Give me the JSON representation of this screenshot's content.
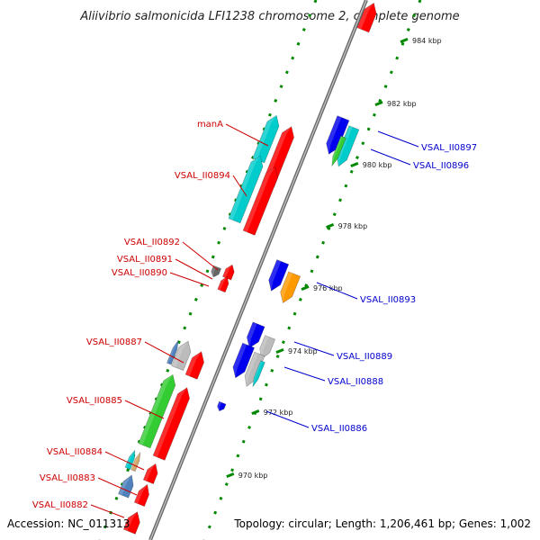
{
  "title": "Aliivibrio salmonicida LFI1238 chromosome 2, complete genome",
  "footer": {
    "accession": "Accession: NC_011313",
    "summary": "Topology: circular; Length: 1,206,461 bp; Genes: 1,002"
  },
  "colors": {
    "forward_label": "#cc0000",
    "reverse_label": "#0000cc",
    "tick": "#008800",
    "backbone": "#888888",
    "red": "#ff0000",
    "blue": "#0000ee",
    "cyan": "#00cccc",
    "green": "#33cc33",
    "orange": "#ff9900",
    "gray": "#bbbbbb",
    "steel": "#4f81bd",
    "tan": "#d2a96b",
    "dark": "#666666"
  },
  "ticks": [
    {
      "label": "984 kbp"
    },
    {
      "label": "982 kbp"
    },
    {
      "label": "980 kbp"
    },
    {
      "label": "978 kbp"
    },
    {
      "label": "976 kbp"
    },
    {
      "label": "974 kbp"
    },
    {
      "label": "972 kbp"
    },
    {
      "label": "970 kbp"
    }
  ],
  "labels_forward": [
    {
      "text": "manA"
    },
    {
      "text": "VSAL_II0894"
    },
    {
      "text": "VSAL_II0892"
    },
    {
      "text": "VSAL_II0891"
    },
    {
      "text": "VSAL_II0890"
    },
    {
      "text": "VSAL_II0887"
    },
    {
      "text": "VSAL_II0885"
    },
    {
      "text": "VSAL_II0884"
    },
    {
      "text": "VSAL_II0883"
    },
    {
      "text": "VSAL_II0882"
    }
  ],
  "labels_reverse": [
    {
      "text": "VSAL_II0897"
    },
    {
      "text": "VSAL_II0896"
    },
    {
      "text": "VSAL_II0893"
    },
    {
      "text": "VSAL_II0889"
    },
    {
      "text": "VSAL_II0888"
    },
    {
      "text": "VSAL_II0886"
    }
  ]
}
